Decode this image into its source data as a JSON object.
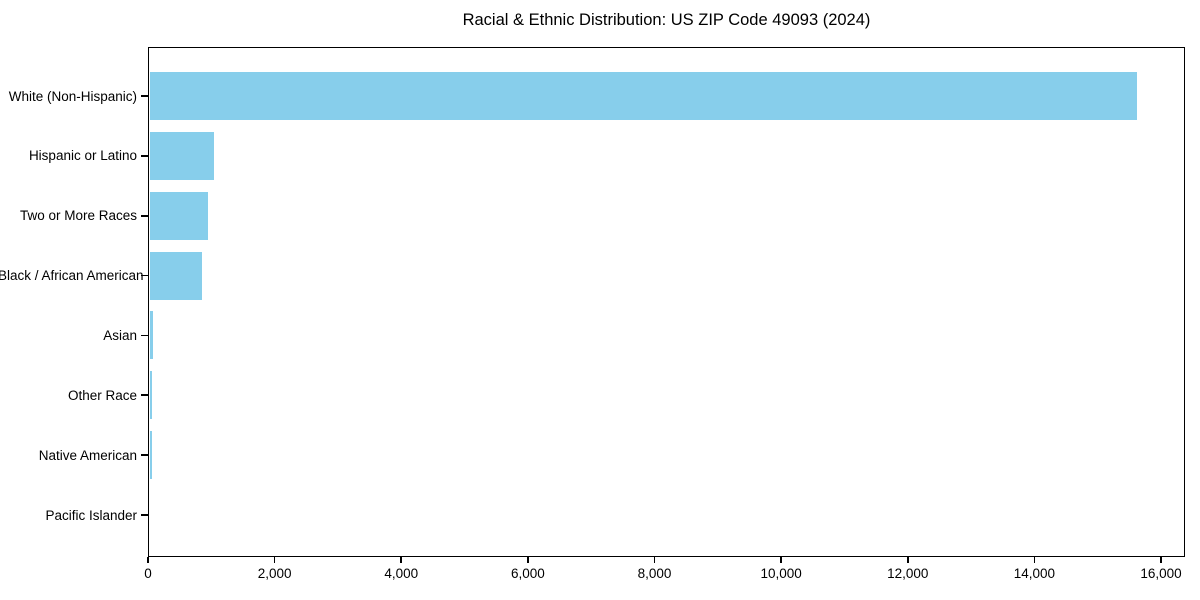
{
  "figure": {
    "background_color": "#ffffff",
    "text_color": "#000000"
  },
  "chart_data": {
    "type": "bar",
    "orientation": "horizontal",
    "title": "Racial & Ethnic Distribution: US ZIP Code 49093 (2024)",
    "categories": [
      "White (Non-Hispanic)",
      "Hispanic or Latino",
      "Two or More Races",
      "Black / African American",
      "Asian",
      "Other Race",
      "Native American",
      "Pacific Islander"
    ],
    "values": [
      15590,
      1010,
      915,
      820,
      58,
      40,
      38,
      0
    ],
    "xlabel": "",
    "ylabel": "",
    "xlim": [
      0,
      16380
    ],
    "x_ticks": [
      0,
      2000,
      4000,
      6000,
      8000,
      10000,
      12000,
      14000,
      16000
    ],
    "x_tick_labels": [
      "0",
      "2,000",
      "4,000",
      "6,000",
      "8,000",
      "10,000",
      "12,000",
      "14,000",
      "16,000"
    ],
    "bar_color": "#87CEEB",
    "axis_color": "#000000",
    "grid": false,
    "legend": false
  }
}
